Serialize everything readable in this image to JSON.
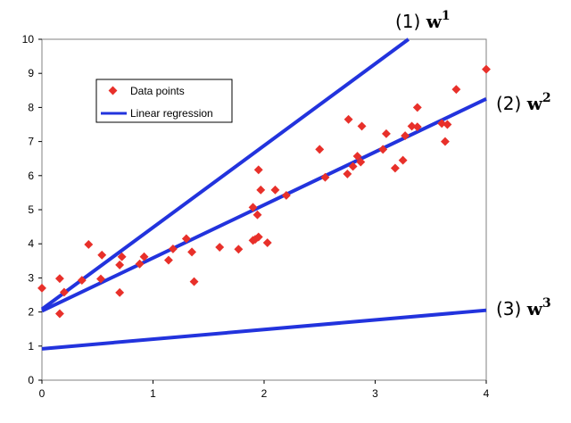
{
  "chart_data": {
    "type": "scatter",
    "title": "",
    "xlabel": "",
    "ylabel": "",
    "xlim": [
      0,
      4
    ],
    "ylim": [
      0,
      10
    ],
    "xticks": [
      0,
      1,
      2,
      3,
      4
    ],
    "yticks": [
      0,
      1,
      2,
      3,
      4,
      5,
      6,
      7,
      8,
      9,
      10
    ],
    "legend": {
      "position": "top-left",
      "entries": [
        "Data points",
        "Linear regression"
      ]
    },
    "series": [
      {
        "name": "Data points",
        "kind": "scatter",
        "color": "#e8302a",
        "points": [
          [
            0.0,
            2.7
          ],
          [
            0.16,
            1.95
          ],
          [
            0.16,
            2.98
          ],
          [
            0.2,
            2.58
          ],
          [
            0.36,
            2.93
          ],
          [
            0.42,
            3.98
          ],
          [
            0.53,
            2.97
          ],
          [
            0.54,
            3.67
          ],
          [
            0.7,
            3.38
          ],
          [
            0.7,
            2.57
          ],
          [
            0.72,
            3.62
          ],
          [
            0.88,
            3.41
          ],
          [
            0.92,
            3.62
          ],
          [
            1.14,
            3.52
          ],
          [
            1.18,
            3.85
          ],
          [
            1.3,
            4.15
          ],
          [
            1.35,
            3.76
          ],
          [
            1.37,
            2.89
          ],
          [
            1.6,
            3.9
          ],
          [
            1.77,
            3.84
          ],
          [
            1.9,
            4.1
          ],
          [
            1.9,
            5.07
          ],
          [
            1.92,
            4.13
          ],
          [
            1.94,
            4.85
          ],
          [
            1.95,
            4.2
          ],
          [
            1.95,
            6.17
          ],
          [
            1.97,
            5.58
          ],
          [
            2.03,
            4.03
          ],
          [
            2.1,
            5.58
          ],
          [
            2.2,
            5.42
          ],
          [
            2.5,
            6.77
          ],
          [
            2.55,
            5.95
          ],
          [
            2.75,
            6.05
          ],
          [
            2.76,
            7.65
          ],
          [
            2.8,
            6.27
          ],
          [
            2.84,
            6.57
          ],
          [
            2.87,
            6.4
          ],
          [
            2.88,
            7.45
          ],
          [
            3.07,
            6.77
          ],
          [
            3.1,
            7.23
          ],
          [
            3.18,
            6.22
          ],
          [
            3.25,
            6.45
          ],
          [
            3.27,
            7.17
          ],
          [
            3.33,
            7.45
          ],
          [
            3.38,
            7.43
          ],
          [
            3.38,
            8.0
          ],
          [
            3.6,
            7.53
          ],
          [
            3.63,
            7.0
          ],
          [
            3.65,
            7.5
          ],
          [
            3.73,
            8.53
          ],
          [
            4.0,
            9.12
          ]
        ]
      },
      {
        "name": "Linear regression",
        "kind": "line",
        "color": "#2233dd",
        "points": [
          [
            0,
            2.03
          ],
          [
            4,
            8.25
          ]
        ]
      },
      {
        "name": "w1",
        "kind": "line",
        "color": "#2233dd",
        "points": [
          [
            0,
            2.08
          ],
          [
            3.3,
            10.0
          ]
        ]
      },
      {
        "name": "w3",
        "kind": "line",
        "color": "#2233dd",
        "points": [
          [
            0,
            0.92
          ],
          [
            4,
            2.05
          ]
        ]
      }
    ],
    "annotations": [
      {
        "label": "(1) ",
        "symbol": "w",
        "superscript": "1",
        "series": "w1"
      },
      {
        "label": "(2) ",
        "symbol": "w",
        "superscript": "2",
        "series": "Linear regression"
      },
      {
        "label": "(3) ",
        "symbol": "w",
        "superscript": "3",
        "series": "w3"
      }
    ]
  }
}
